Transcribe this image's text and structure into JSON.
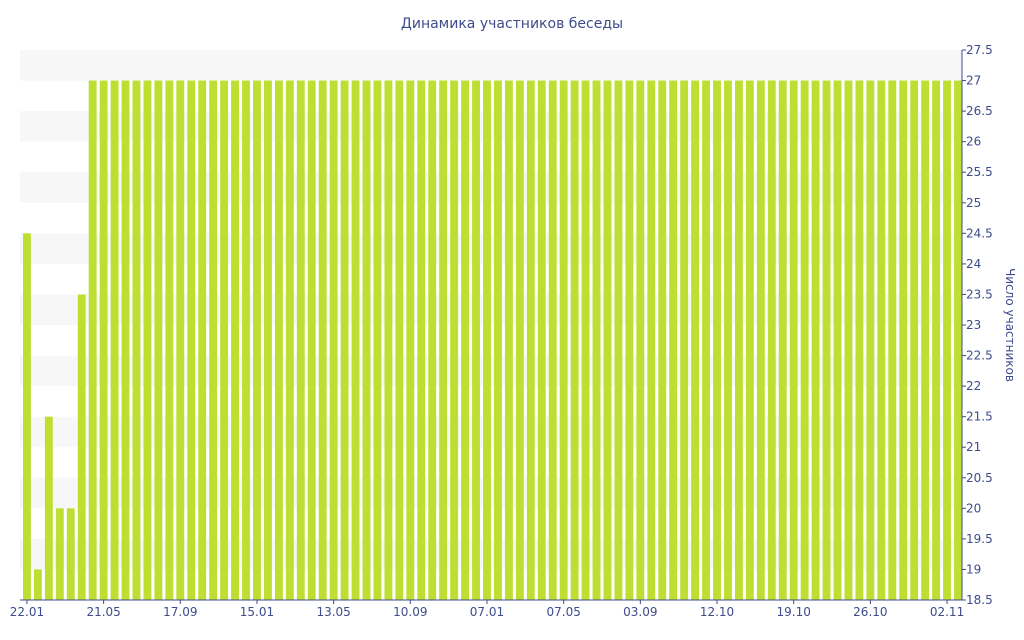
{
  "chart_data": {
    "type": "bar",
    "title": "Динамика участников беседы",
    "xlabel": "",
    "ylabel": "Число участников",
    "ylim": [
      18.5,
      27.5
    ],
    "y_ticks": [
      18.5,
      19,
      19.5,
      20,
      20.5,
      21,
      21.5,
      22,
      22.5,
      23,
      23.5,
      24,
      24.5,
      25,
      25.5,
      26,
      26.5,
      27,
      27.5
    ],
    "y_axis_position": "right",
    "x_tick_labels": [
      {
        "label": "22.01",
        "index": 0
      },
      {
        "label": "21.05",
        "index": 7
      },
      {
        "label": "17.09",
        "index": 14
      },
      {
        "label": "15.01",
        "index": 21
      },
      {
        "label": "13.05",
        "index": 28
      },
      {
        "label": "10.09",
        "index": 35
      },
      {
        "label": "07.01",
        "index": 42
      },
      {
        "label": "07.05",
        "index": 49
      },
      {
        "label": "03.09",
        "index": 56
      },
      {
        "label": "12.10",
        "index": 63
      },
      {
        "label": "19.10",
        "index": 70
      },
      {
        "label": "26.10",
        "index": 77
      },
      {
        "label": "02.11",
        "index": 84
      }
    ],
    "grid": "horizontal-bands",
    "bar_color": "#bedf32",
    "band_color": "#f7f7f7",
    "text_color": "#3e4b8c",
    "values": [
      24.5,
      19,
      21.5,
      20,
      20,
      23.5,
      27,
      27,
      27,
      27,
      27,
      27,
      27,
      27,
      27,
      27,
      27,
      27,
      27,
      27,
      27,
      27,
      27,
      27,
      27,
      27,
      27,
      27,
      27,
      27,
      27,
      27,
      27,
      27,
      27,
      27,
      27,
      27,
      27,
      27,
      27,
      27,
      27,
      27,
      27,
      27,
      27,
      27,
      27,
      27,
      27,
      27,
      27,
      27,
      27,
      27,
      27,
      27,
      27,
      27,
      27,
      27,
      27,
      27,
      27,
      27,
      27,
      27,
      27,
      27,
      27,
      27,
      27,
      27,
      27,
      27,
      27,
      27,
      27,
      27,
      27,
      27,
      27,
      27,
      27,
      27
    ]
  }
}
